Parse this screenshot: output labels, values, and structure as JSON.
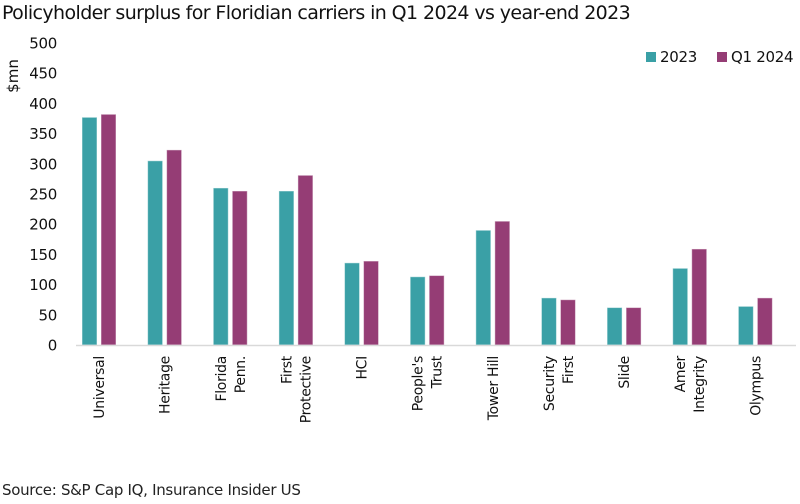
{
  "chart_data": {
    "type": "bar",
    "title": "Policyholder surplus for Floridian carriers in Q1 2024 vs year-end 2023",
    "xlabel": "",
    "ylabel": "$mn",
    "ylim": [
      0,
      500
    ],
    "yticks": [
      0,
      50,
      100,
      150,
      200,
      250,
      300,
      350,
      400,
      450,
      500
    ],
    "grid": false,
    "legend_position": "top-right",
    "categories": [
      [
        "Universal"
      ],
      [
        "Heritage"
      ],
      [
        "Florida",
        "Penn."
      ],
      [
        "First",
        "Protective"
      ],
      [
        "HCI"
      ],
      [
        "People's",
        "Trust"
      ],
      [
        "Tower Hill"
      ],
      [
        "Security",
        "First"
      ],
      [
        "Slide"
      ],
      [
        "Amer",
        "Integrity"
      ],
      [
        "Olympus"
      ]
    ],
    "series": [
      {
        "name": "2023",
        "color": "#3aa0a6",
        "values": [
          377,
          305,
          260,
          255,
          136,
          113,
          190,
          78,
          62,
          127,
          64
        ]
      },
      {
        "name": "Q1 2024",
        "color": "#953d75",
        "values": [
          382,
          323,
          255,
          281,
          139,
          115,
          205,
          75,
          62,
          159,
          78
        ]
      }
    ],
    "source": "Source: S&P Cap IQ, Insurance Insider US"
  }
}
